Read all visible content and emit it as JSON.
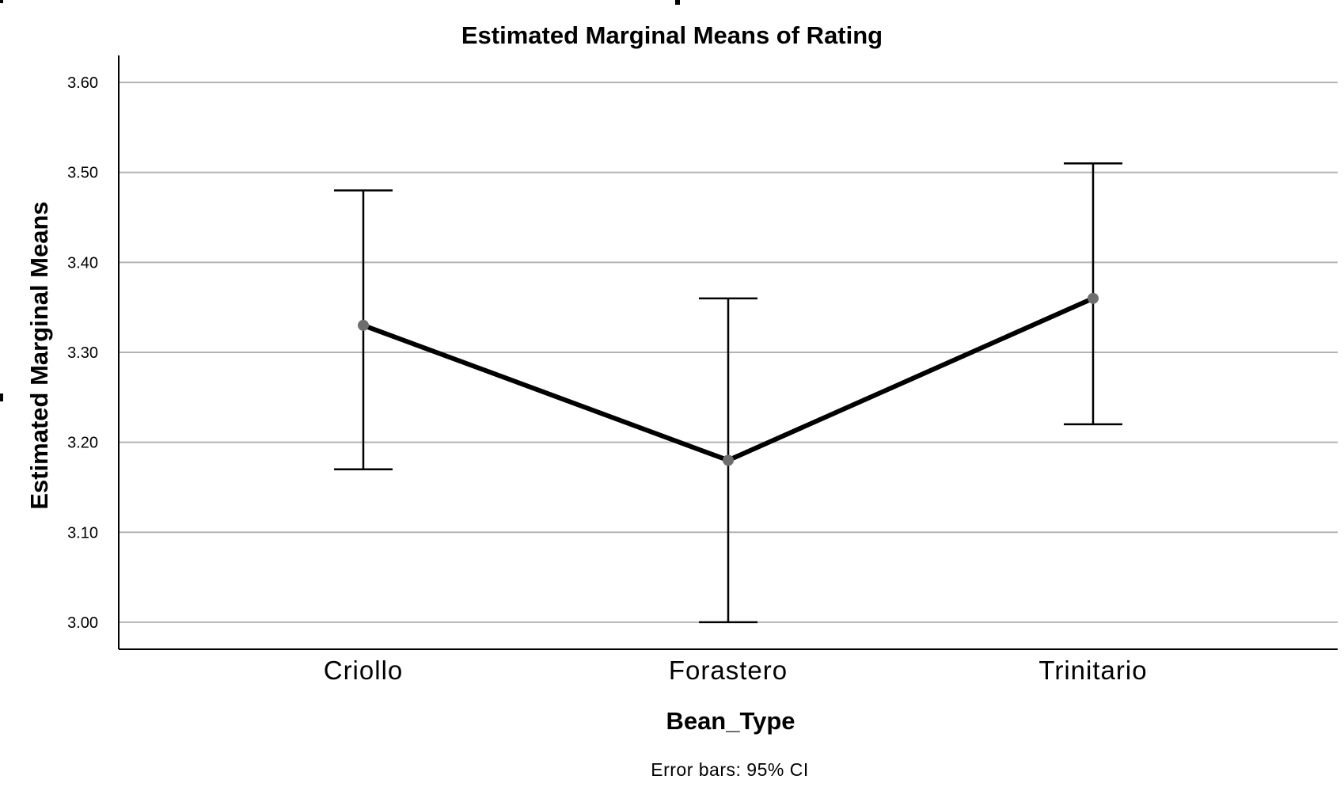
{
  "chart_data": {
    "type": "line",
    "title": "Estimated Marginal Means of Rating",
    "xlabel": "Bean_Type",
    "ylabel": "Estimated Marginal Means",
    "footnote": "Error bars: 95% CI",
    "categories": [
      "Criollo",
      "Forastero",
      "Trinitario"
    ],
    "series": [
      {
        "values": [
          3.33,
          3.18,
          3.36
        ],
        "ci_lower": [
          3.17,
          3.0,
          3.22
        ],
        "ci_upper": [
          3.48,
          3.36,
          3.51
        ]
      }
    ],
    "ylim": [
      2.97,
      3.63
    ],
    "yticks": [
      "3.00",
      "3.10",
      "3.20",
      "3.30",
      "3.40",
      "3.50",
      "3.60"
    ],
    "grid": true,
    "legend": "none",
    "colors": {
      "line": "#000000",
      "marker": "#6e6e6e",
      "errorbar": "#000000",
      "grid": "#b3b3b3",
      "axis": "#000000"
    }
  }
}
